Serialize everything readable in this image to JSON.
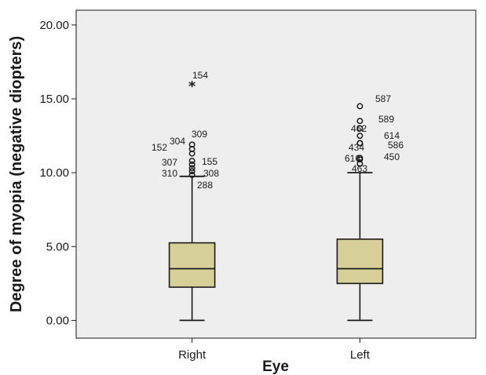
{
  "chart_data": {
    "type": "boxplot",
    "xlabel": "Eye",
    "ylabel": "Degree of myopia (negative diopters)",
    "ylim": [
      -1.2,
      21.0
    ],
    "yticks": [
      "0.00",
      "5.00",
      "10.00",
      "15.00",
      "20.00"
    ],
    "ytick_values": [
      0,
      5,
      10,
      15,
      20
    ],
    "grid": false,
    "colors": {
      "background": "#eeeeee",
      "box": "#d6d098",
      "stroke": "#1a1a1a"
    },
    "categories": [
      "Right",
      "Left"
    ],
    "boxes": [
      {
        "category": "Right",
        "min": 0.0,
        "q1": 2.25,
        "median": 3.5,
        "q3": 5.25,
        "max": 9.75,
        "outliers": [
          {
            "label": "288",
            "value": 9.85,
            "marker": "circle"
          },
          {
            "label": "308",
            "value": 10.1,
            "marker": "circle"
          },
          {
            "label": "310",
            "value": 10.3,
            "marker": "circle"
          },
          {
            "label": "155",
            "value": 10.55,
            "marker": "circle"
          },
          {
            "label": "307",
            "value": 10.8,
            "marker": "circle"
          },
          {
            "label": "152",
            "value": 11.3,
            "marker": "circle"
          },
          {
            "label": "304",
            "value": 11.6,
            "marker": "circle"
          },
          {
            "label": "309",
            "value": 11.9,
            "marker": "circle"
          },
          {
            "label": "154",
            "value": 16.0,
            "marker": "star"
          }
        ]
      },
      {
        "category": "Left",
        "min": 0.0,
        "q1": 2.5,
        "median": 3.5,
        "q3": 5.5,
        "max": 10.0,
        "outliers": [
          {
            "label": "463",
            "value": 10.6,
            "marker": "circle"
          },
          {
            "label": "450",
            "value": 10.9,
            "marker": "circle"
          },
          {
            "label": "616",
            "value": 11.0,
            "marker": "circle"
          },
          {
            "label": "434",
            "value": 12.0,
            "marker": "circle"
          },
          {
            "label": "586",
            "value": 12.0,
            "marker": "circle"
          },
          {
            "label": "614",
            "value": 12.5,
            "marker": "circle"
          },
          {
            "label": "462",
            "value": 13.0,
            "marker": "circle"
          },
          {
            "label": "589",
            "value": 13.5,
            "marker": "circle"
          },
          {
            "label": "587",
            "value": 14.5,
            "marker": "circle"
          }
        ]
      }
    ]
  }
}
